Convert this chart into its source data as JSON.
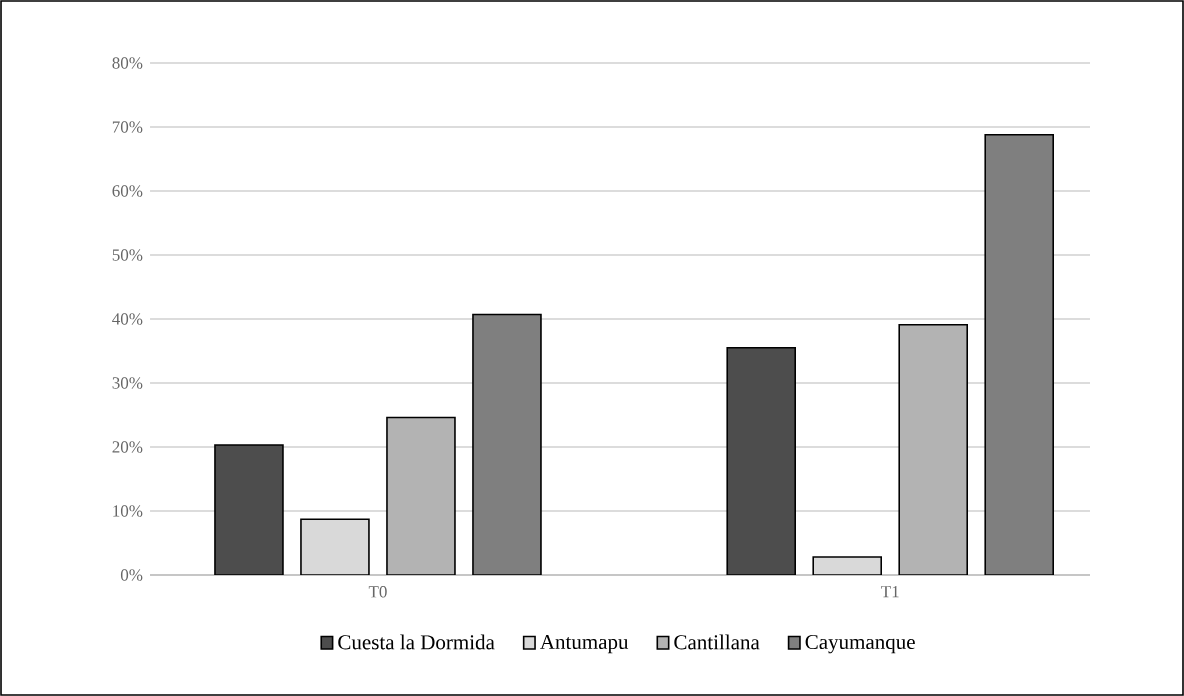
{
  "chart_data": {
    "type": "bar",
    "categories": [
      "T0",
      "T1"
    ],
    "series": [
      {
        "name": "Cuesta la Dormida",
        "color": "#4d4d4d",
        "values": [
          20.3,
          35.5
        ]
      },
      {
        "name": "Antumapu",
        "color": "#d9d9d9",
        "values": [
          8.7,
          2.8
        ]
      },
      {
        "name": "Cantillana",
        "color": "#b3b3b3",
        "values": [
          24.6,
          39.1
        ]
      },
      {
        "name": "Cayumanque",
        "color": "#7f7f7f",
        "values": [
          40.7,
          68.8
        ]
      }
    ],
    "ylim": [
      0,
      80
    ],
    "yticks": [
      {
        "value": 0,
        "label": "0%"
      },
      {
        "value": 10,
        "label": "10%"
      },
      {
        "value": 20,
        "label": "20%"
      },
      {
        "value": 30,
        "label": "30%"
      },
      {
        "value": 40,
        "label": "40%"
      },
      {
        "value": 50,
        "label": "50%"
      },
      {
        "value": 60,
        "label": "60%"
      },
      {
        "value": 70,
        "label": "70%"
      },
      {
        "value": 80,
        "label": "80%"
      }
    ],
    "grid": "y",
    "legend": "bottom"
  }
}
